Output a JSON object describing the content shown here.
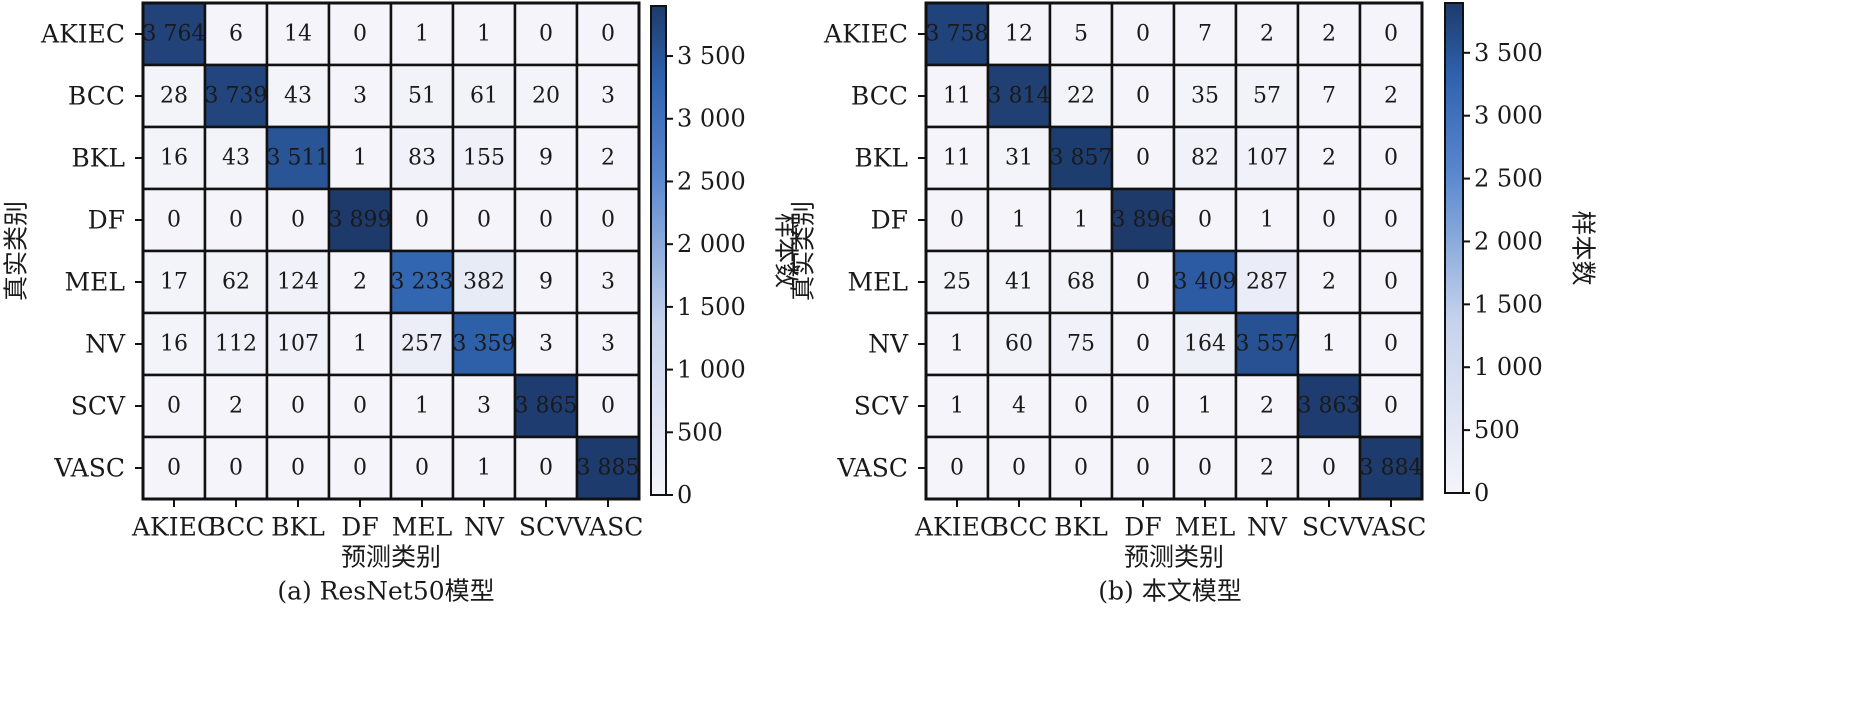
{
  "chart_data": [
    {
      "type": "heatmap",
      "caption": "(a) ResNet50模型",
      "xlabel": "预测类别",
      "ylabel": "真实类别",
      "categories": [
        "AKIEC",
        "BCC",
        "BKL",
        "DF",
        "MEL",
        "NV",
        "SCV",
        "VASC"
      ],
      "colorbar": {
        "label": "样本数",
        "ticks": [
          0,
          500,
          1000,
          1500,
          2000,
          2500,
          3000,
          3500
        ],
        "tick_labels": [
          "0",
          "500",
          "1 000",
          "1 500",
          "2 000",
          "2 500",
          "3 000",
          "3 500"
        ],
        "range": [
          0,
          3899
        ]
      },
      "matrix": [
        [
          3764,
          6,
          14,
          0,
          1,
          1,
          0,
          0
        ],
        [
          28,
          3739,
          43,
          3,
          51,
          61,
          20,
          3
        ],
        [
          16,
          43,
          3511,
          1,
          83,
          155,
          9,
          2
        ],
        [
          0,
          0,
          0,
          3899,
          0,
          0,
          0,
          0
        ],
        [
          17,
          62,
          124,
          2,
          3233,
          382,
          9,
          3
        ],
        [
          16,
          112,
          107,
          1,
          257,
          3359,
          3,
          3
        ],
        [
          0,
          2,
          0,
          0,
          1,
          3,
          3865,
          0
        ],
        [
          0,
          0,
          0,
          0,
          0,
          1,
          0,
          3885
        ]
      ],
      "cell_labels": [
        [
          "3 764",
          "6",
          "14",
          "0",
          "1",
          "1",
          "0",
          "0"
        ],
        [
          "28",
          "3 739",
          "43",
          "3",
          "51",
          "61",
          "20",
          "3"
        ],
        [
          "16",
          "43",
          "3 511",
          "1",
          "83",
          "155",
          "9",
          "2"
        ],
        [
          "0",
          "0",
          "0",
          "3 899",
          "0",
          "0",
          "0",
          "0"
        ],
        [
          "17",
          "62",
          "124",
          "2",
          "3 233",
          "382",
          "9",
          "3"
        ],
        [
          "16",
          "112",
          "107",
          "1",
          "257",
          "3 359",
          "3",
          "3"
        ],
        [
          "0",
          "2",
          "0",
          "0",
          "1",
          "3",
          "3 865",
          "0"
        ],
        [
          "0",
          "0",
          "0",
          "0",
          "0",
          "1",
          "0",
          "3 885"
        ]
      ]
    },
    {
      "type": "heatmap",
      "caption": "(b) 本文模型",
      "xlabel": "预测类别",
      "ylabel": "真实类别",
      "categories": [
        "AKIEC",
        "BCC",
        "BKL",
        "DF",
        "MEL",
        "NV",
        "SCV",
        "VASC"
      ],
      "colorbar": {
        "label": "样本数",
        "ticks": [
          0,
          500,
          1000,
          1500,
          2000,
          2500,
          3000,
          3500
        ],
        "tick_labels": [
          "0",
          "500",
          "1 000",
          "1 500",
          "2 000",
          "2 500",
          "3 000",
          "3 500"
        ],
        "range": [
          0,
          3896
        ]
      },
      "matrix": [
        [
          3758,
          12,
          5,
          0,
          7,
          2,
          2,
          0
        ],
        [
          11,
          3814,
          22,
          0,
          35,
          57,
          7,
          2
        ],
        [
          11,
          31,
          3857,
          0,
          82,
          107,
          2,
          0
        ],
        [
          0,
          1,
          1,
          3896,
          0,
          1,
          0,
          0
        ],
        [
          25,
          41,
          68,
          0,
          3409,
          287,
          2,
          0
        ],
        [
          1,
          60,
          75,
          0,
          164,
          3557,
          1,
          0
        ],
        [
          1,
          4,
          0,
          0,
          1,
          2,
          3863,
          0
        ],
        [
          0,
          0,
          0,
          0,
          0,
          2,
          0,
          3884
        ]
      ],
      "cell_labels": [
        [
          "3 758",
          "12",
          "5",
          "0",
          "7",
          "2",
          "2",
          "0"
        ],
        [
          "11",
          "3 814",
          "22",
          "0",
          "35",
          "57",
          "7",
          "2"
        ],
        [
          "11",
          "31",
          "3 857",
          "0",
          "82",
          "107",
          "2",
          "0"
        ],
        [
          "0",
          "1",
          "1",
          "3 896",
          "0",
          "1",
          "0",
          "0"
        ],
        [
          "25",
          "41",
          "68",
          "0",
          "3 409",
          "287",
          "2",
          "0"
        ],
        [
          "1",
          "60",
          "75",
          "0",
          "164",
          "3 557",
          "1",
          "0"
        ],
        [
          "1",
          "4",
          "0",
          "0",
          "1",
          "2",
          "3 863",
          "0"
        ],
        [
          "0",
          "0",
          "0",
          "0",
          "0",
          "2",
          "0",
          "3 884"
        ]
      ]
    }
  ],
  "colors": {
    "low": "#f4f4fa",
    "mid": "#a8bde0",
    "high": "#1d3a6b",
    "grid": "#111111",
    "text_dark": "#1a1a1a",
    "text_light": "#ffffff"
  }
}
